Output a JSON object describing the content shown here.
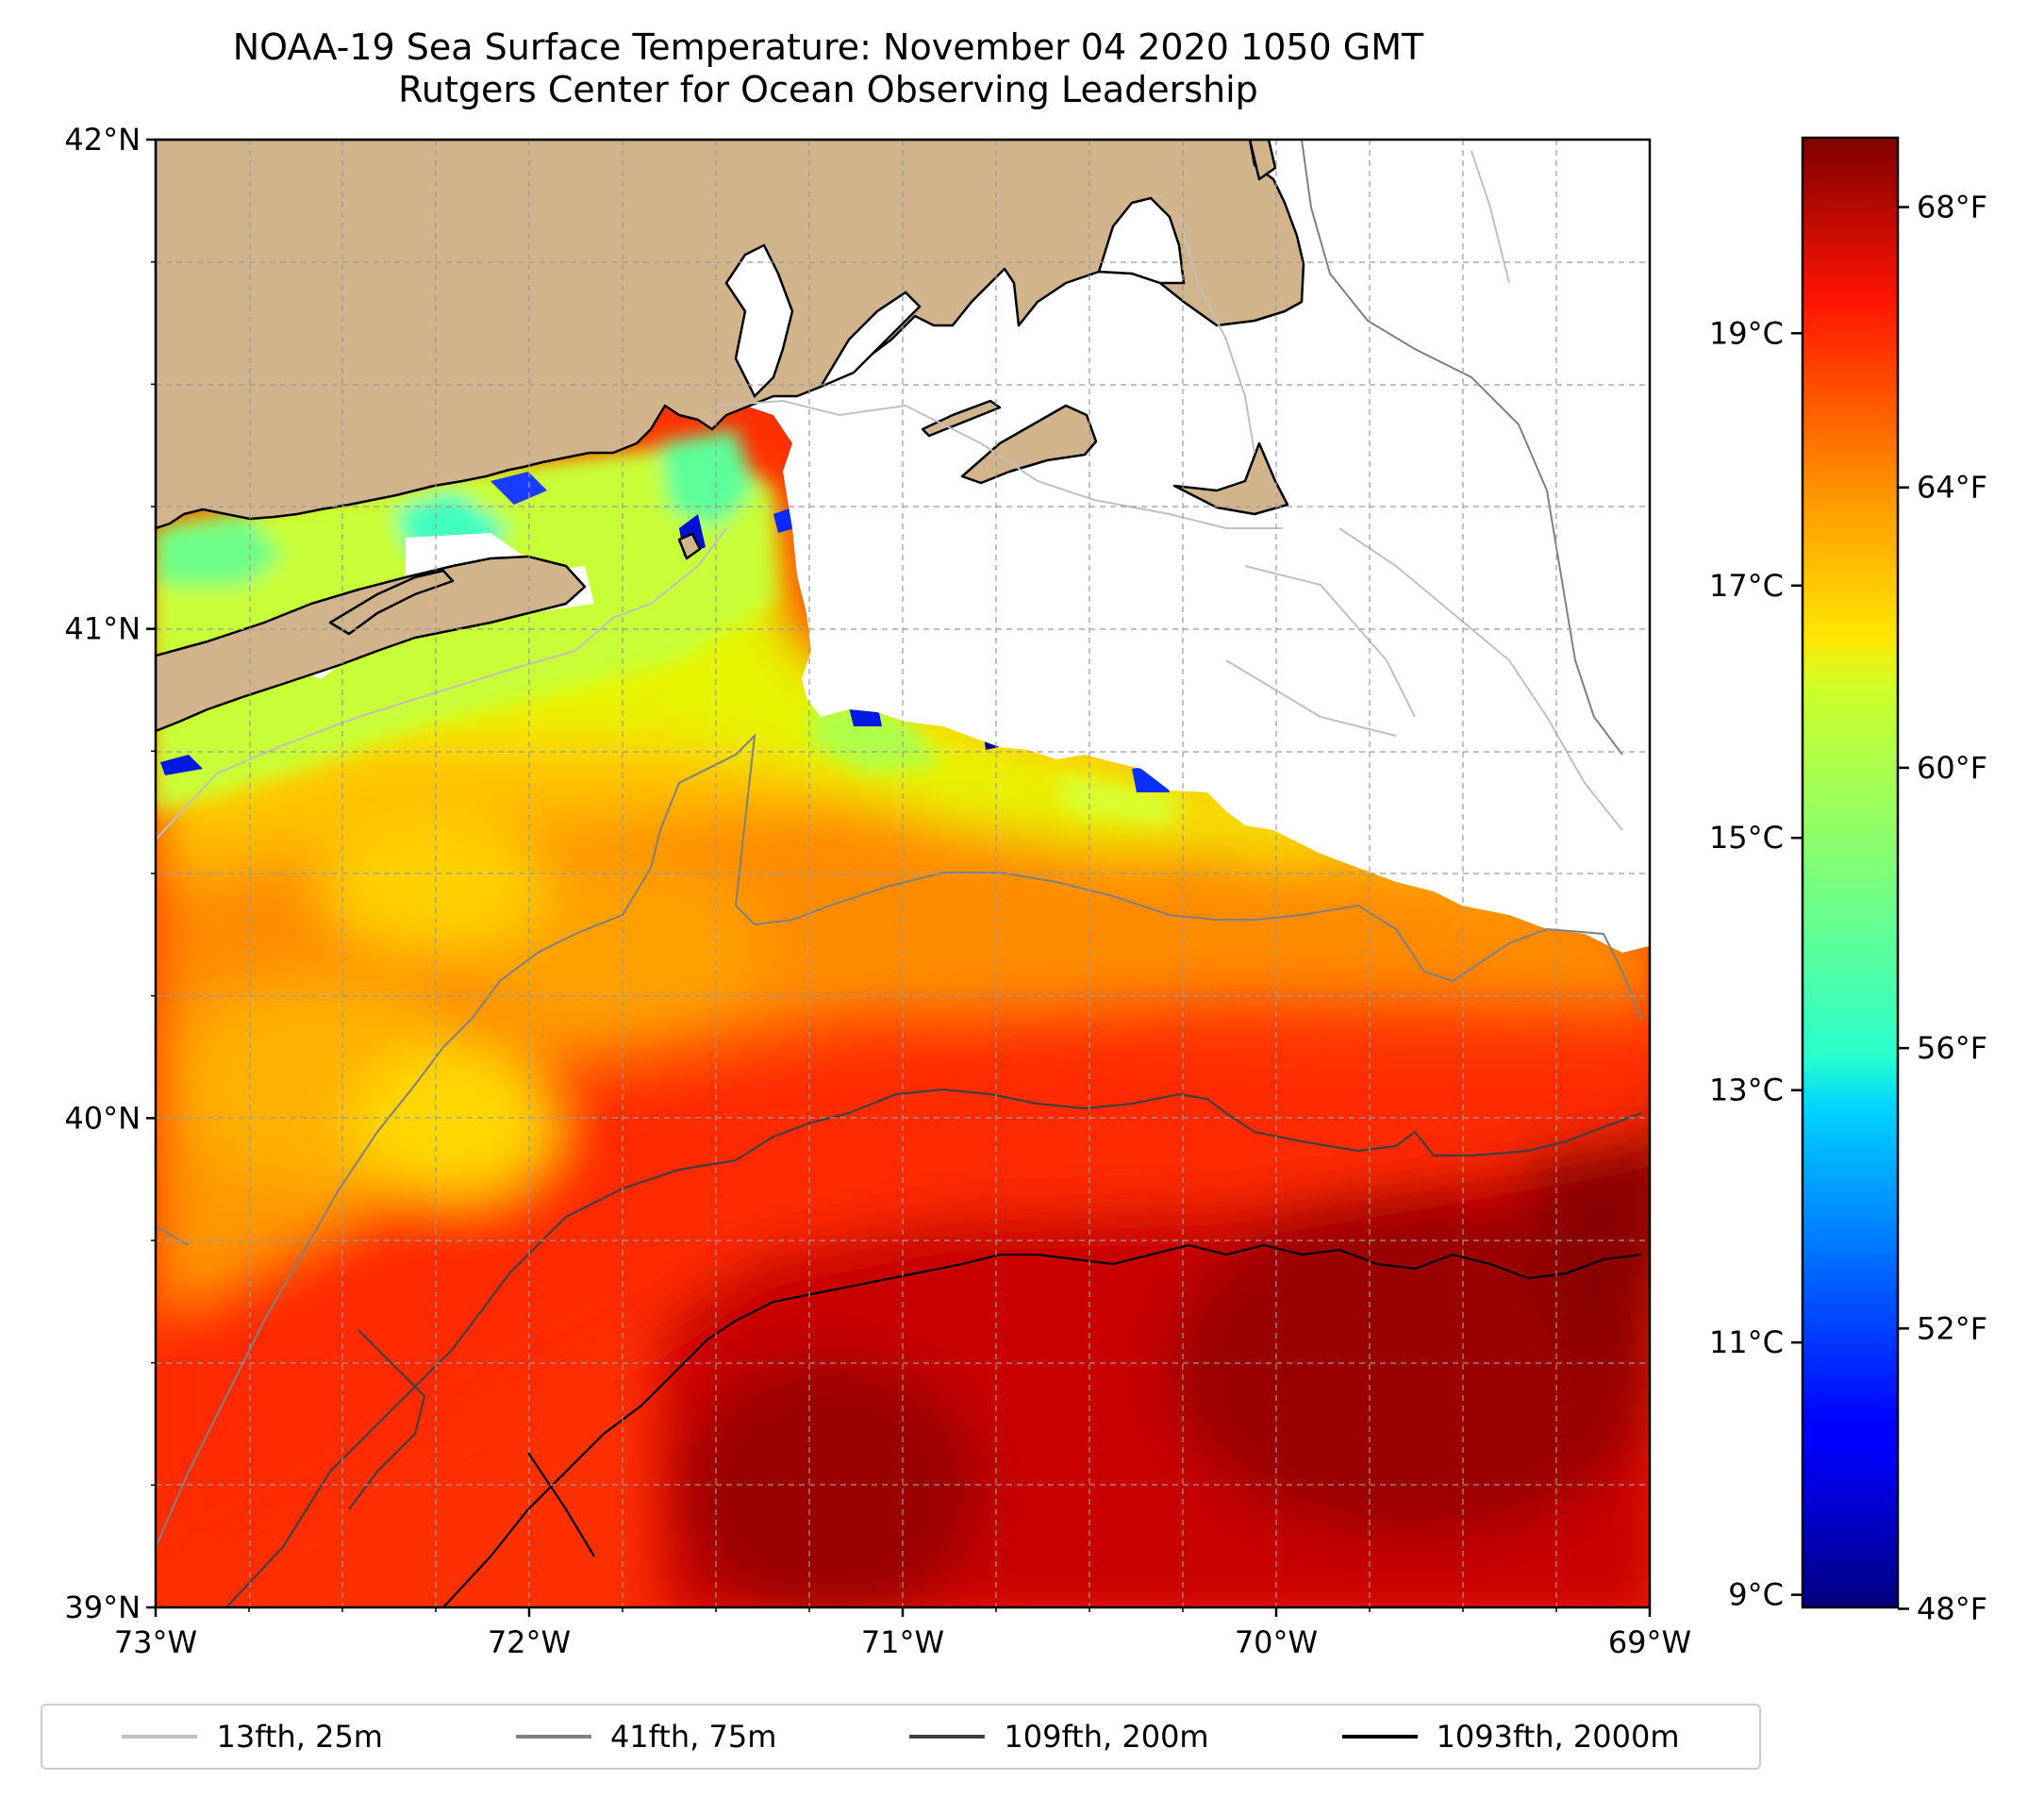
{
  "map": {
    "title": "NOAA-19 Sea Surface Temperature: November 04 2020 1050 GMT",
    "subtitle": "Rutgers Center for Ocean Observing Leadership",
    "lon_range": [
      -73,
      -69
    ],
    "lat_range": [
      39,
      42
    ],
    "lon_ticks": [
      {
        "value": -73,
        "label": "73°W"
      },
      {
        "value": -72,
        "label": "72°W"
      },
      {
        "value": -71,
        "label": "71°W"
      },
      {
        "value": -70,
        "label": "70°W"
      },
      {
        "value": -69,
        "label": "69°W"
      }
    ],
    "lat_ticks": [
      {
        "value": 42,
        "label": "42°N"
      },
      {
        "value": 41,
        "label": "41°N"
      },
      {
        "value": 40,
        "label": "40°N"
      },
      {
        "value": 39,
        "label": "39°N"
      }
    ],
    "gridlines": true,
    "land_color": "#d2b48c",
    "no_data_color": "#ffffff"
  },
  "colorbar": {
    "colormap": "jet",
    "celsius_range": [
      8.9,
      20.55
    ],
    "celsius_ticks": [
      {
        "value": 9,
        "label": "9°C"
      },
      {
        "value": 11,
        "label": "11°C"
      },
      {
        "value": 13,
        "label": "13°C"
      },
      {
        "value": 15,
        "label": "15°C"
      },
      {
        "value": 17,
        "label": "17°C"
      },
      {
        "value": 19,
        "label": "19°C"
      }
    ],
    "fahrenheit_ticks": [
      {
        "value": 48,
        "label": "48°F"
      },
      {
        "value": 52,
        "label": "52°F"
      },
      {
        "value": 56,
        "label": "56°F"
      },
      {
        "value": 60,
        "label": "60°F"
      },
      {
        "value": 64,
        "label": "64°F"
      },
      {
        "value": 68,
        "label": "68°F"
      }
    ]
  },
  "legend": {
    "placement": "bottom",
    "items": [
      {
        "label": "13fth, 25m",
        "color": "#c0c0c0"
      },
      {
        "label": "41fth, 75m",
        "color": "#808080"
      },
      {
        "label": "109fth, 200m",
        "color": "#404040"
      },
      {
        "label": "1093fth, 2000m",
        "color": "#000000"
      }
    ]
  }
}
